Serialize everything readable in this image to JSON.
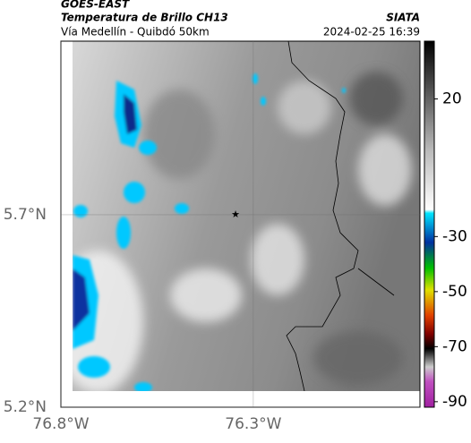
{
  "header": {
    "title": "GOES-EAST",
    "subtitle": "Temperatura de Brillo CH13",
    "location": "Vía Medellín - Quibdó 50km",
    "source": "SIATA",
    "datetime": "2024-02-25 16:39"
  },
  "map": {
    "xlim": [
      -76.8,
      -75.867
    ],
    "ylim": [
      5.2,
      6.151
    ],
    "xticks": [
      {
        "value": -76.8,
        "label": "76.8°W"
      },
      {
        "value": -76.3,
        "label": "76.3°W"
      }
    ],
    "yticks": [
      {
        "value": 5.7,
        "label": "5.7°N"
      },
      {
        "value": 5.2,
        "label": "5.2°N"
      }
    ]
  },
  "colorbar": {
    "lim": [
      41,
      -92
    ],
    "ticks": [
      20,
      -30,
      -50,
      -70,
      -90
    ]
  }
}
